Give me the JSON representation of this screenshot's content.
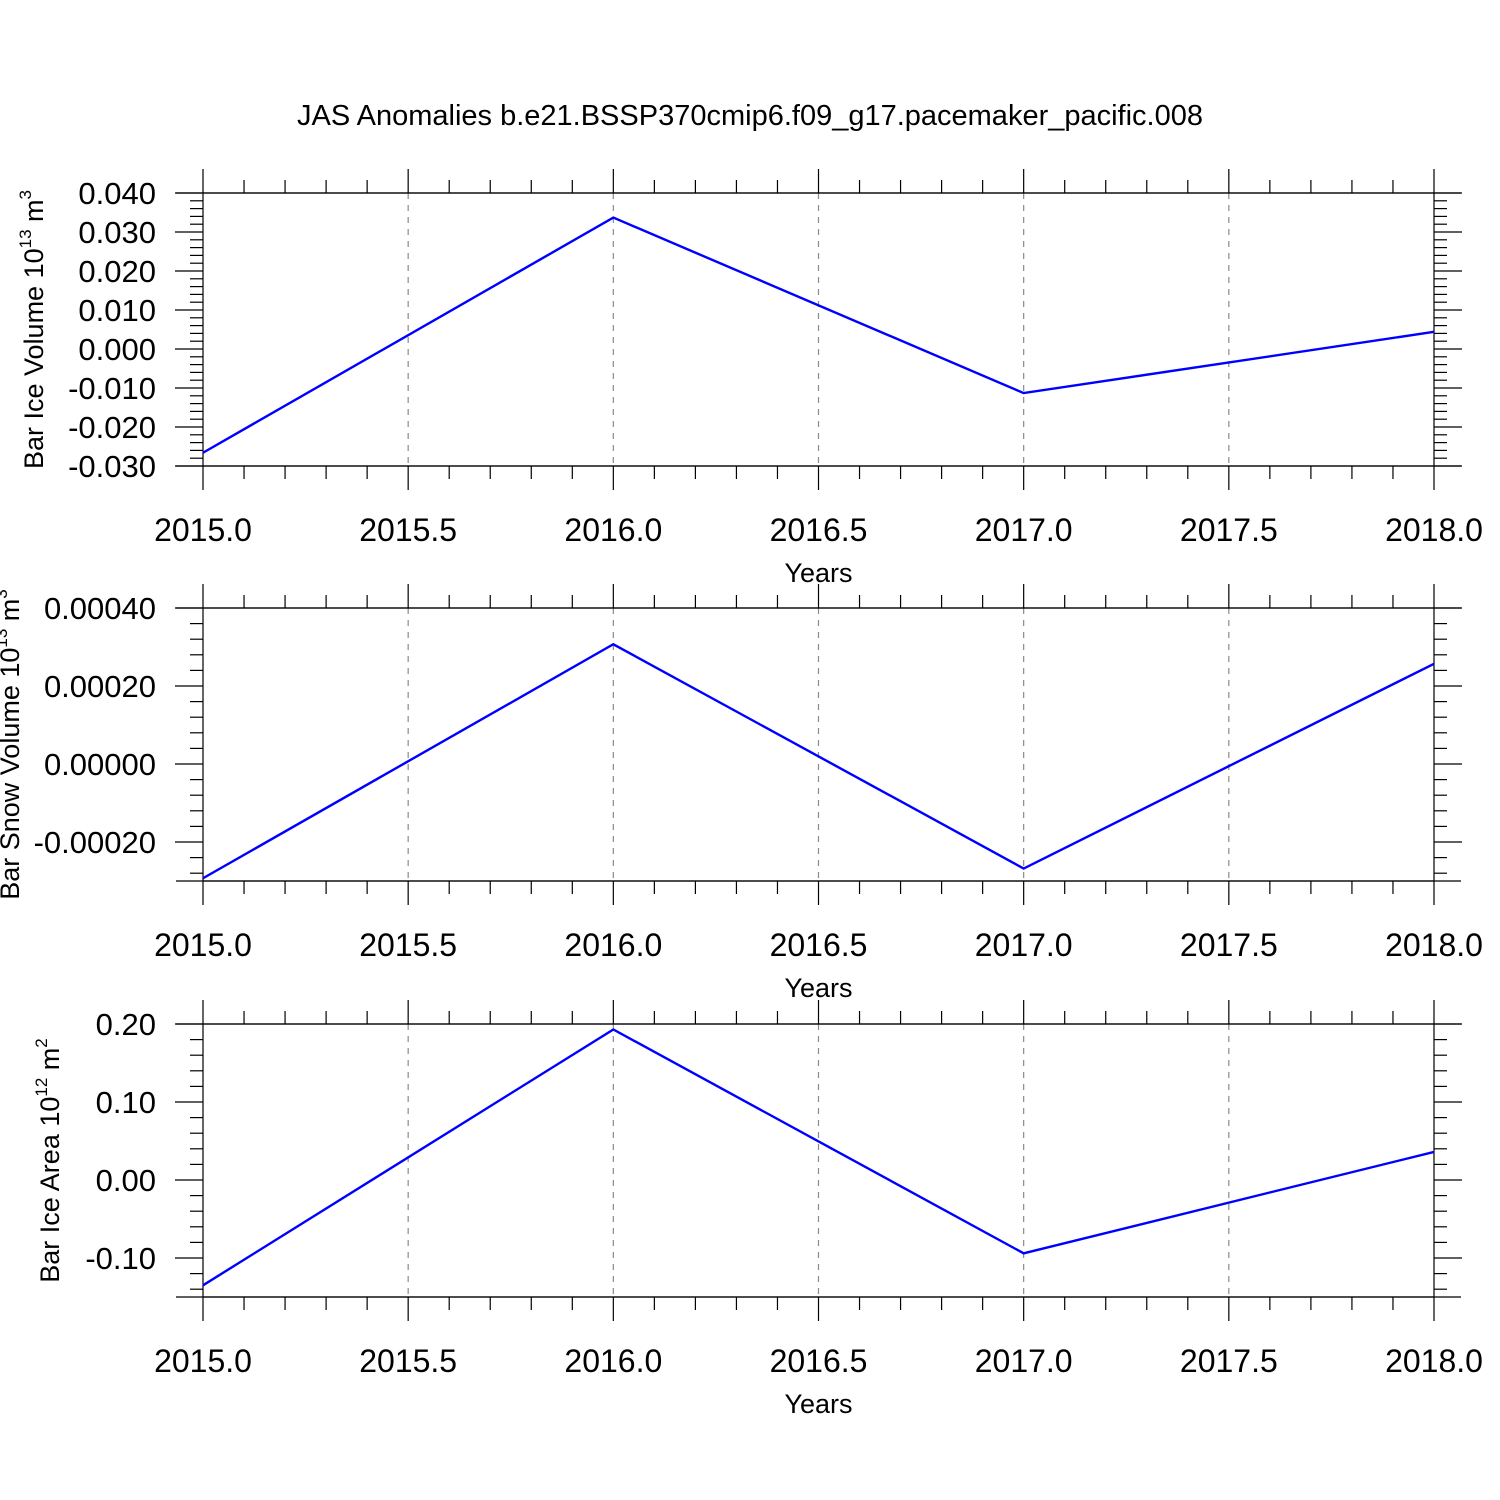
{
  "title": "JAS Anomalies b.e21.BSSP370cmip6.f09_g17.pacemaker_pacific.008",
  "colors": {
    "series": "#0000ff",
    "grid": "#8a8a8a",
    "axes": "#000000"
  },
  "chart_data": [
    {
      "type": "line",
      "xlabel": "Years",
      "ylabel": "Bar Ice Volume 10",
      "ylabel_exponent": "13",
      "ylabel_unit": " m",
      "ylabel_unit_exponent": "3",
      "xlim": [
        2015.0,
        2018.0
      ],
      "ylim": [
        -0.03,
        0.04
      ],
      "x_ticks": [
        2015.0,
        2015.5,
        2016.0,
        2016.5,
        2017.0,
        2017.5,
        2018.0
      ],
      "x_tick_labels": [
        "2015.0",
        "2015.5",
        "2016.0",
        "2016.5",
        "2017.0",
        "2017.5",
        "2018.0"
      ],
      "y_ticks": [
        -0.03,
        -0.02,
        -0.01,
        0.0,
        0.01,
        0.02,
        0.03,
        0.04
      ],
      "y_tick_labels": [
        "-0.030",
        "-0.020",
        "-0.010",
        "0.000",
        "0.010",
        "0.020",
        "0.030",
        "0.040"
      ],
      "y_minor_step": 0.002,
      "grid": "vertical dashed",
      "x": [
        2015,
        2016,
        2017,
        2018
      ],
      "series": [
        {
          "values": [
            -0.0266,
            0.0337,
            -0.0113,
            0.0044
          ]
        }
      ]
    },
    {
      "type": "line",
      "xlabel": "Years",
      "ylabel": "Bar Snow Volume 10",
      "ylabel_exponent": "13",
      "ylabel_unit": " m",
      "ylabel_unit_exponent": "3",
      "xlim": [
        2015.0,
        2018.0
      ],
      "ylim": [
        -0.0003,
        0.0004
      ],
      "x_ticks": [
        2015.0,
        2015.5,
        2016.0,
        2016.5,
        2017.0,
        2017.5,
        2018.0
      ],
      "x_tick_labels": [
        "2015.0",
        "2015.5",
        "2016.0",
        "2016.5",
        "2017.0",
        "2017.5",
        "2018.0"
      ],
      "y_ticks": [
        -0.0002,
        0.0,
        0.0002,
        0.0004
      ],
      "y_tick_labels": [
        "-0.00020",
        "0.00000",
        "0.00020",
        "0.00040"
      ],
      "y_minor_step": 4e-05,
      "grid": "vertical dashed",
      "x": [
        2015,
        2016,
        2017,
        2018
      ],
      "series": [
        {
          "values": [
            -0.000293,
            0.000307,
            -0.000268,
            0.000257
          ]
        }
      ]
    },
    {
      "type": "line",
      "xlabel": "Years",
      "ylabel": "Bar Ice Area 10",
      "ylabel_exponent": "12",
      "ylabel_unit": " m",
      "ylabel_unit_exponent": "2",
      "xlim": [
        2015.0,
        2018.0
      ],
      "ylim": [
        -0.15,
        0.2
      ],
      "x_ticks": [
        2015.0,
        2015.5,
        2016.0,
        2016.5,
        2017.0,
        2017.5,
        2018.0
      ],
      "x_tick_labels": [
        "2015.0",
        "2015.5",
        "2016.0",
        "2016.5",
        "2017.0",
        "2017.5",
        "2018.0"
      ],
      "y_ticks": [
        -0.1,
        0.0,
        0.1,
        0.2
      ],
      "y_tick_labels": [
        "-0.10",
        "0.00",
        "0.10",
        "0.20"
      ],
      "y_minor_step": 0.02,
      "grid": "vertical dashed",
      "x": [
        2015,
        2016,
        2017,
        2018
      ],
      "series": [
        {
          "values": [
            -0.135,
            0.193,
            -0.094,
            0.036
          ]
        }
      ]
    }
  ]
}
